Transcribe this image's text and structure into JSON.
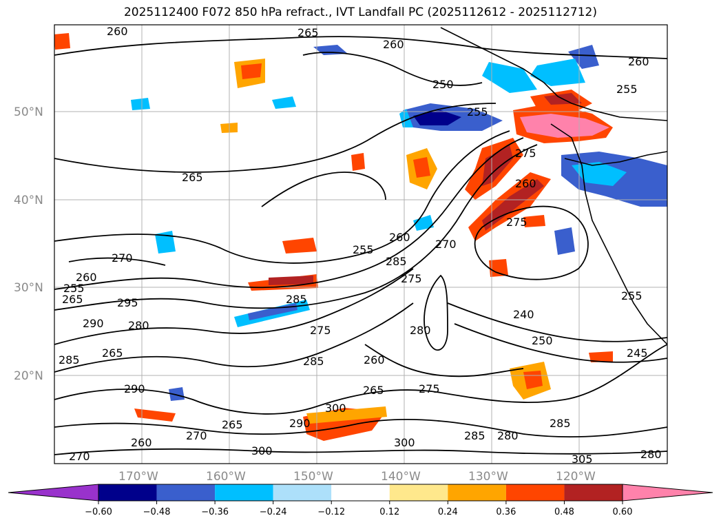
{
  "title": "2025112400 F072 850 hPa refract., IVT Landfall PC (2025112612 - 2025112712)",
  "lat_labels": [
    "50°N",
    "40°N",
    "30°N",
    "20°N"
  ],
  "lon_labels": [
    "170°W",
    "160°W",
    "150°W",
    "140°W",
    "130°W",
    "120°W"
  ],
  "colorbar": {
    "ticks": [
      "−0.60",
      "−0.48",
      "−0.36",
      "−0.24",
      "−0.12",
      "0.12",
      "0.24",
      "0.36",
      "0.48",
      "0.60"
    ],
    "colors": [
      "#9932CC",
      "#00008B",
      "#3A5FCD",
      "#00BFFF",
      "#ADE0FA",
      "#FFFFFF",
      "#FFE88C",
      "#FFA500",
      "#FF4500",
      "#B22222",
      "#FF82AB"
    ]
  },
  "contour_labels": [
    "260",
    "265",
    "260",
    "260",
    "255",
    "250",
    "255",
    "265",
    "270",
    "260",
    "255",
    "265",
    "295",
    "290",
    "285",
    "285",
    "280",
    "265",
    "290",
    "260",
    "300",
    "265",
    "290",
    "300",
    "285",
    "255",
    "260",
    "285",
    "270",
    "275",
    "260",
    "270",
    "280",
    "285",
    "260",
    "265",
    "275",
    "280",
    "285",
    "250",
    "240",
    "275",
    "245",
    "300",
    "305",
    "280",
    "275",
    "255",
    "275",
    "270"
  ],
  "colors": {
    "orange": "#FFA500",
    "red": "#FF4500",
    "darkred": "#B22222",
    "pink": "#FF82AB",
    "lightblue": "#ADE0FA",
    "cyan": "#00BFFF",
    "blue": "#3A5FCD",
    "navy": "#00008B"
  }
}
